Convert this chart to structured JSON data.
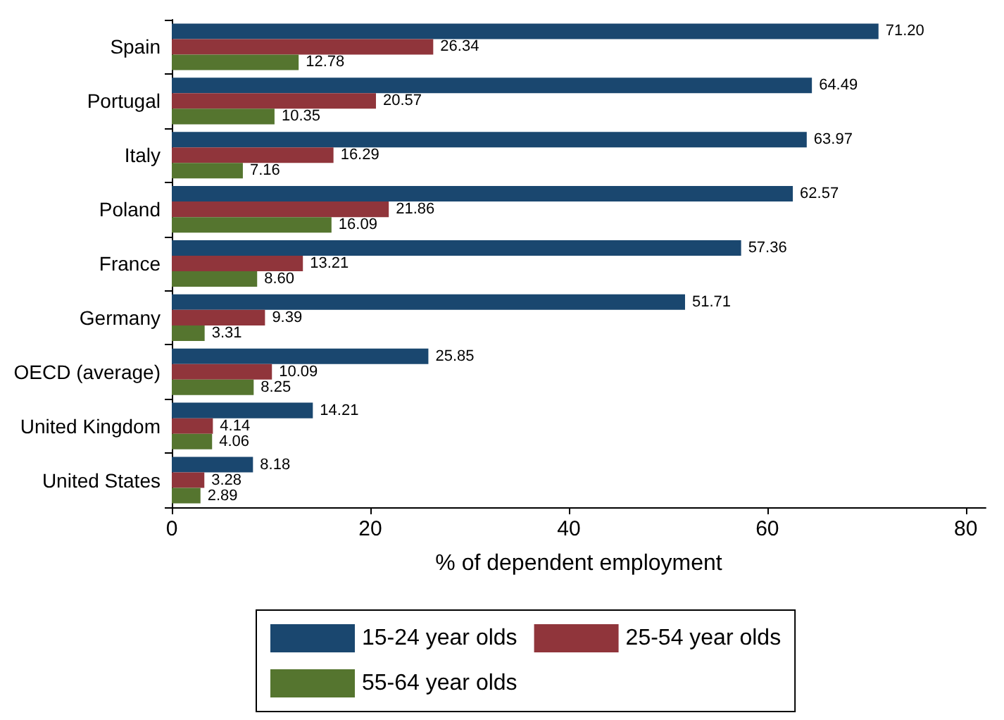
{
  "chart_data": {
    "type": "bar",
    "orientation": "horizontal",
    "xlabel": "% of dependent employment",
    "categories": [
      "Spain",
      "Portugal",
      "Italy",
      "Poland",
      "France",
      "Germany",
      "OECD (average)",
      "United Kingdom",
      "United States"
    ],
    "series": [
      {
        "name": "15-24 year olds",
        "color": "#1a476f",
        "values": [
          71.2,
          64.49,
          63.97,
          62.57,
          57.36,
          51.71,
          25.85,
          14.21,
          8.18
        ],
        "value_labels": [
          "71.20",
          "64.49",
          "63.97",
          "62.57",
          "57.36",
          "51.71",
          "25.85",
          "14.21",
          "8.18"
        ]
      },
      {
        "name": "25-54 year olds",
        "color": "#90353b",
        "values": [
          26.34,
          20.57,
          16.29,
          21.86,
          13.21,
          9.39,
          10.09,
          4.14,
          3.28
        ],
        "value_labels": [
          "26.34",
          "20.57",
          "16.29",
          "21.86",
          "13.21",
          "9.39",
          "10.09",
          "4.14",
          "3.28"
        ]
      },
      {
        "name": "55-64 year olds",
        "color": "#55752f",
        "values": [
          12.78,
          10.35,
          7.16,
          16.09,
          8.6,
          3.31,
          8.25,
          4.06,
          2.89
        ],
        "value_labels": [
          "12.78",
          "10.35",
          "7.16",
          "16.09",
          "8.60",
          "3.31",
          "8.25",
          "4.06",
          "2.89"
        ]
      }
    ],
    "xlim": [
      0,
      82
    ],
    "xticks": [
      0,
      20,
      40,
      60,
      80
    ],
    "grid": false,
    "legend": "bottom"
  }
}
